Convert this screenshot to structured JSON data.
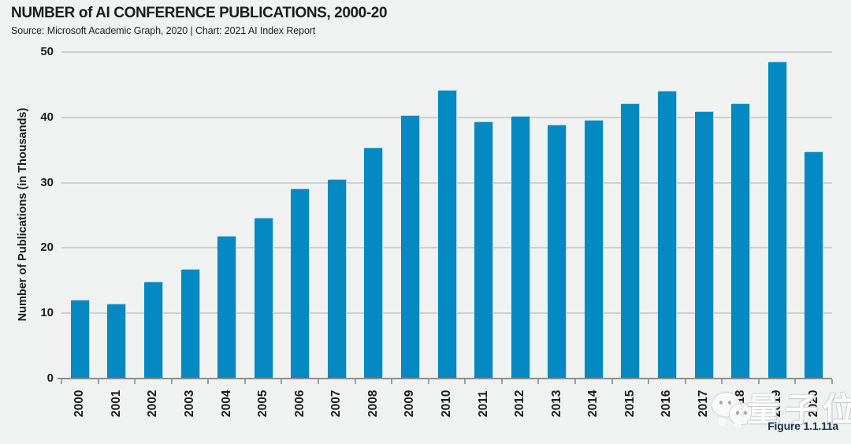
{
  "header": {
    "title": "NUMBER of AI CONFERENCE PUBLICATIONS, 2000-20",
    "source": "Source: Microsoft Academic Graph, 2020 | Chart: 2021 AI Index Report"
  },
  "chart_data": {
    "type": "bar",
    "title": "NUMBER of AI CONFERENCE PUBLICATIONS, 2000-20",
    "categories": [
      "2000",
      "2001",
      "2002",
      "2003",
      "2004",
      "2005",
      "2006",
      "2007",
      "2008",
      "2009",
      "2010",
      "2011",
      "2012",
      "2013",
      "2014",
      "2015",
      "2016",
      "2017",
      "2018",
      "2019",
      "2020"
    ],
    "values": [
      11.9,
      11.4,
      14.7,
      16.7,
      21.7,
      24.5,
      29.0,
      30.4,
      35.3,
      40.2,
      44.1,
      39.3,
      40.1,
      38.8,
      39.5,
      42.0,
      44.0,
      40.8,
      42.0,
      48.4,
      34.7
    ],
    "xlabel": "",
    "ylabel": "Number of Publications (in Thousands)",
    "ylim": [
      0,
      50
    ],
    "yticks": [
      0,
      10,
      20,
      30,
      40,
      50
    ],
    "grid": true,
    "legend": "none",
    "bar_color": "#0589c2",
    "bar_edge_color": "#aad7ec",
    "gridline_color": "#cfcfcf",
    "axis_line_color": "#8c8c8c",
    "background_color": "#f0f1f1"
  },
  "watermark": {
    "icon": "wechat-icon",
    "text": "量子位",
    "color": "#fbfbfb"
  },
  "figure_label": {
    "text": "Figure 1.1.11a",
    "color": "#16334e"
  }
}
